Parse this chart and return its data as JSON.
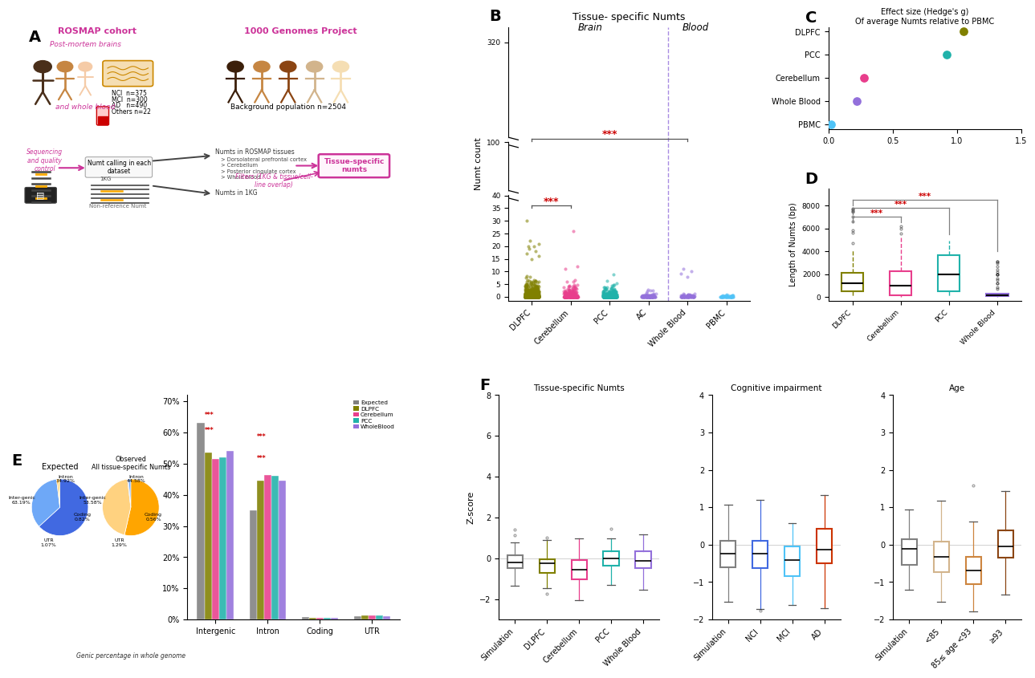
{
  "panel_B": {
    "title": "Tissue- specific Numts",
    "xlabel_brain": "Brain",
    "xlabel_blood": "Blood",
    "ylabel": "Numt count",
    "categories": [
      "DLPFC",
      "Cerebellum",
      "PCC",
      "AC",
      "Whole Blood",
      "PBMC"
    ],
    "colors": [
      "#808000",
      "#e83e8c",
      "#20b2aa",
      "#9370db",
      "#9370db",
      "#4fc3f7"
    ]
  },
  "panel_C": {
    "title1": "Effect size (Hedge's g)",
    "title2": "Of average Numts relative to PBMC",
    "ylabel_categories": [
      "PBMC",
      "Whole Blood",
      "Cerebellum",
      "PCC",
      "DLPFC"
    ],
    "x_values": [
      0.02,
      0.22,
      0.28,
      0.92,
      1.05
    ],
    "colors": [
      "#4fc3f7",
      "#9370db",
      "#e83e8c",
      "#20b2aa",
      "#808000"
    ],
    "xlim": [
      0.0,
      1.5
    ],
    "xticks": [
      0.0,
      0.5,
      1.0,
      1.5
    ]
  },
  "panel_D": {
    "ylabel": "Length of Numts (bp)",
    "categories": [
      "DLPFC",
      "Cerebellum",
      "PCC",
      "Whole Blood"
    ],
    "colors": [
      "#808000",
      "#e83e8c",
      "#20b2aa",
      "#9370db"
    ],
    "box_data": {
      "DLPFC": {
        "q1": 500,
        "median": 800,
        "q3": 2500,
        "whisker_low": 50,
        "whisker_high": 8000
      },
      "Cerebellum": {
        "q1": 100,
        "median": 200,
        "q3": 2600,
        "whisker_low": 50,
        "whisker_high": 6200
      },
      "PCC": {
        "q1": 500,
        "median": 2200,
        "q3": 4400,
        "whisker_low": 50,
        "whisker_high": 5000
      },
      "Whole Blood": {
        "q1": 100,
        "median": 200,
        "q3": 400,
        "whisker_low": 50,
        "whisker_high": 3200
      }
    },
    "yticks": [
      0,
      2000,
      4000,
      6000,
      8000
    ]
  },
  "panel_E": {
    "expected_slices": [
      63.19,
      34.92,
      0.82,
      1.07
    ],
    "observed_slices": [
      53.58,
      44.58,
      0.56,
      1.29
    ],
    "bar_categories": [
      "Intergenic",
      "Intron",
      "Coding",
      "UTR"
    ],
    "bar_groups": [
      "Expected",
      "DLPFC",
      "Cerebellum",
      "PCC",
      "WholeBlood"
    ],
    "bar_colors": [
      "#808080",
      "#808000",
      "#e83e8c",
      "#20b2aa",
      "#9370db"
    ],
    "bar_values": {
      "Intergenic": [
        63.19,
        53.58,
        51.5,
        52.0,
        54.0
      ],
      "Intron": [
        34.92,
        44.58,
        46.5,
        46.0,
        44.5
      ],
      "Coding": [
        0.82,
        0.56,
        0.6,
        0.65,
        0.58
      ],
      "UTR": [
        1.07,
        1.29,
        1.4,
        1.35,
        0.92
      ]
    }
  },
  "panel_F": {
    "sub_titles": [
      "Tissue-specific Numts",
      "Cognitive impairment",
      "Age"
    ],
    "ts_categories": [
      "Simulation",
      "DLPFC",
      "Cerebellum",
      "PCC",
      "Whole Blood"
    ],
    "ts_colors": [
      "#808080",
      "#808000",
      "#e83e8c",
      "#20b2aa",
      "#9370db"
    ],
    "ci_categories": [
      "Simulation",
      "NCI",
      "MCI",
      "AD"
    ],
    "ci_colors": [
      "#808080",
      "#4169e1",
      "#4fc3f7",
      "#cc3300"
    ],
    "age_categories": [
      "Simulation",
      "<85",
      "85≤ age <93",
      "≥93"
    ],
    "age_colors": [
      "#808080",
      "#d2b48c",
      "#cd853f",
      "#8b4513"
    ],
    "ylabel": "Z-score"
  },
  "panel_label_size": 14,
  "sig_color": "#cc0000",
  "rosmap_color": "#cc3399"
}
